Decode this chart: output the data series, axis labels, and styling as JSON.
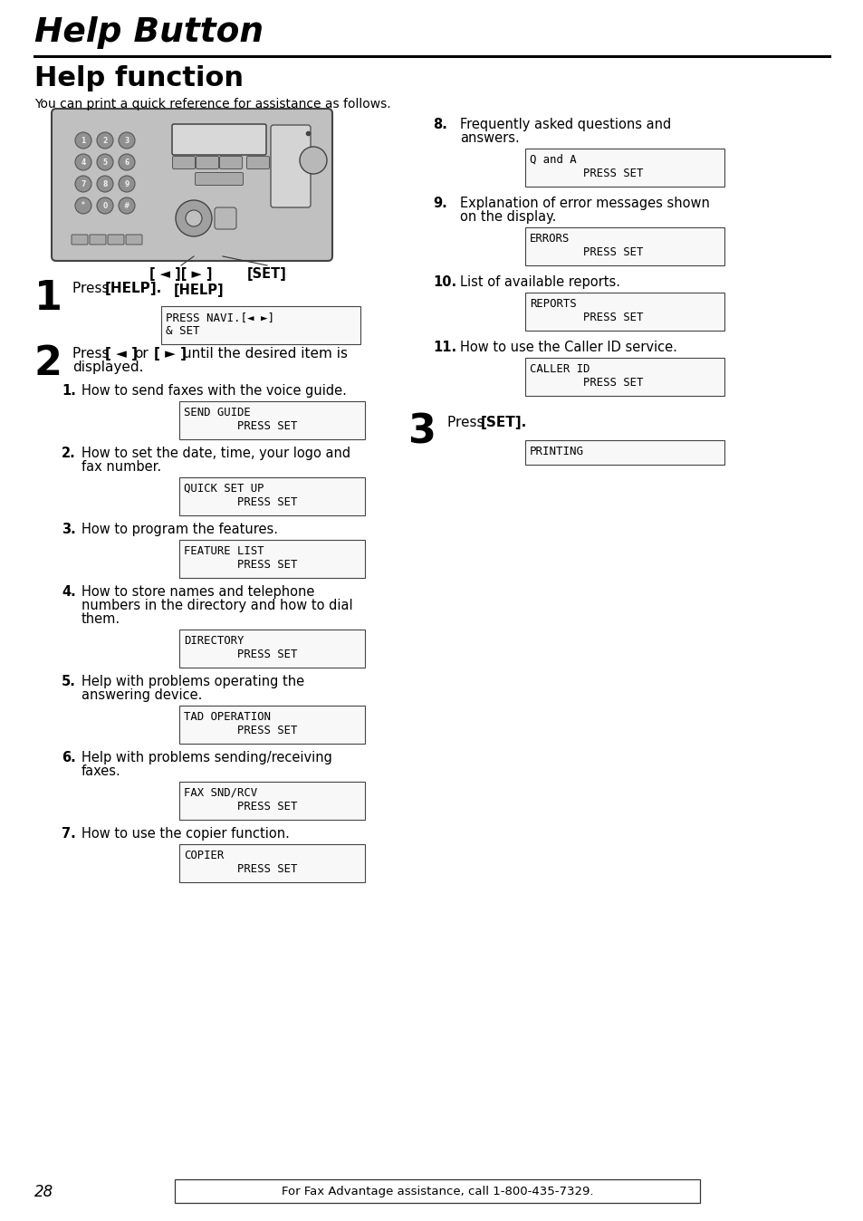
{
  "page_bg": "#ffffff",
  "title_chapter": "Help Button",
  "title_section": "Help function",
  "intro_text": "You can print a quick reference for assistance as follows.",
  "step1_display": [
    "PRESS NAVI.[◄ ►]",
    "& SET"
  ],
  "items": [
    {
      "num": "1.",
      "text": [
        "How to send faxes with the voice guide."
      ],
      "display": [
        "SEND GUIDE",
        "        PRESS SET"
      ]
    },
    {
      "num": "2.",
      "text": [
        "How to set the date, time, your logo and",
        "fax number."
      ],
      "display": [
        "QUICK SET UP",
        "        PRESS SET"
      ]
    },
    {
      "num": "3.",
      "text": [
        "How to program the features."
      ],
      "display": [
        "FEATURE LIST",
        "        PRESS SET"
      ]
    },
    {
      "num": "4.",
      "text": [
        "How to store names and telephone",
        "numbers in the directory and how to dial",
        "them."
      ],
      "display": [
        "DIRECTORY",
        "        PRESS SET"
      ]
    },
    {
      "num": "5.",
      "text": [
        "Help with problems operating the",
        "answering device."
      ],
      "display": [
        "TAD OPERATION",
        "        PRESS SET"
      ]
    },
    {
      "num": "6.",
      "text": [
        "Help with problems sending/receiving",
        "faxes."
      ],
      "display": [
        "FAX SND/RCV",
        "        PRESS SET"
      ]
    },
    {
      "num": "7.",
      "text": [
        "How to use the copier function."
      ],
      "display": [
        "COPIER",
        "        PRESS SET"
      ]
    }
  ],
  "right_items": [
    {
      "num": "8.",
      "text": [
        "Frequently asked questions and",
        "answers."
      ],
      "display": [
        "Q and A",
        "        PRESS SET"
      ]
    },
    {
      "num": "9.",
      "text": [
        "Explanation of error messages shown",
        "on the display."
      ],
      "display": [
        "ERRORS",
        "        PRESS SET"
      ]
    },
    {
      "num": "10.",
      "text": [
        "List of available reports."
      ],
      "display": [
        "REPORTS",
        "        PRESS SET"
      ]
    },
    {
      "num": "11.",
      "text": [
        "How to use the Caller ID service."
      ],
      "display": [
        "CALLER ID",
        "        PRESS SET"
      ]
    }
  ],
  "step3_display": [
    "PRINTING"
  ],
  "page_num": "28",
  "footer_text": "For Fax Advantage assistance, call 1-800-435-7329."
}
